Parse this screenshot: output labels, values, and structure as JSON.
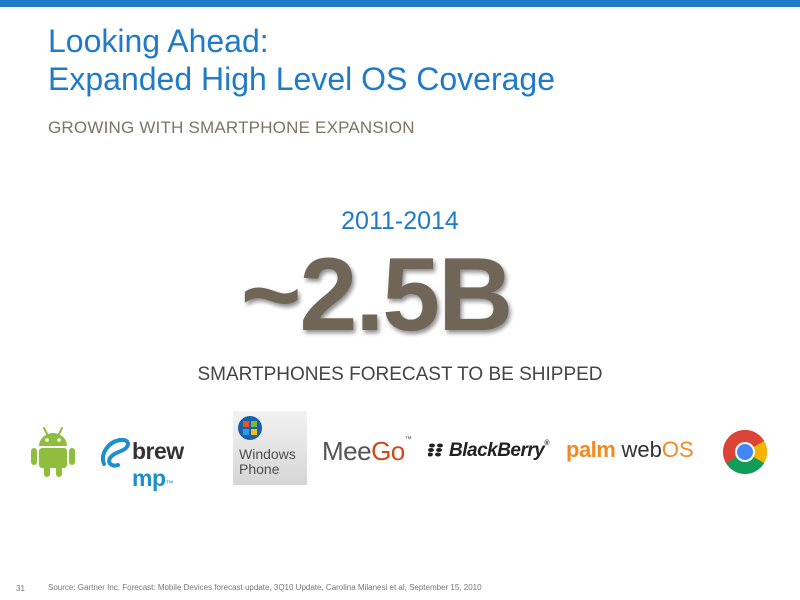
{
  "header": {
    "accent_color": "#1f7ac9",
    "title_line1": "Looking Ahead:",
    "title_line2": "Expanded High Level OS Coverage",
    "subtitle": "GROWING WITH SMARTPHONE EXPANSION"
  },
  "stat": {
    "period": "2011-2014",
    "value": "~2.5B",
    "caption": "SMARTPHONES FORECAST TO BE SHIPPED"
  },
  "logos": {
    "android": "android-icon",
    "brew_prefix": "brew",
    "brew_suffix": "mp",
    "brew_tm": "™",
    "windows_phone_line1": "Windows",
    "windows_phone_line2": "Phone",
    "meego_prefix": "Mee",
    "meego_suffix": "Go",
    "meego_tm": "™",
    "blackberry": "BlackBerry",
    "blackberry_reg": "®",
    "palm_prefix": "palm",
    "palm_web": "web",
    "palm_os": "OS",
    "chrome": "chrome-icon"
  },
  "footer": {
    "page_number": "31",
    "source": "Source: Gartner Inc. Forecast: Mobile Devices forecast update, 3Q10 Update, Carolina Milanesi et al, September 15, 2010"
  }
}
